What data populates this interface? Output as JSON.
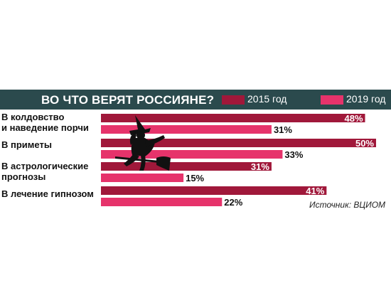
{
  "colors": {
    "header_bg": "#2b4a4d",
    "series_2015": "#a0183a",
    "series_2019": "#e6336b"
  },
  "icons": {
    "decoration": "witch-on-broom-icon"
  },
  "source": "Источник: ВЦИОМ",
  "chart_data": {
    "type": "bar",
    "orientation": "horizontal",
    "title": "ВО ЧТО ВЕРЯТ РОССИЯНЕ?",
    "categories": [
      [
        "В колдовство",
        "и наведение порчи"
      ],
      [
        "В приметы"
      ],
      [
        "В астрологические",
        "прогнозы"
      ],
      [
        "В лечение гипнозом"
      ]
    ],
    "series": [
      {
        "name": "2015 год",
        "values": [
          48,
          50,
          31,
          41
        ],
        "labels": [
          "48%",
          "50%",
          "31%",
          "41%"
        ]
      },
      {
        "name": "2019 год",
        "values": [
          31,
          33,
          15,
          22
        ],
        "labels": [
          "31%",
          "33%",
          "15%",
          "22%"
        ]
      }
    ],
    "xlim": [
      0,
      50
    ],
    "legend": "top-right",
    "grid": false
  }
}
